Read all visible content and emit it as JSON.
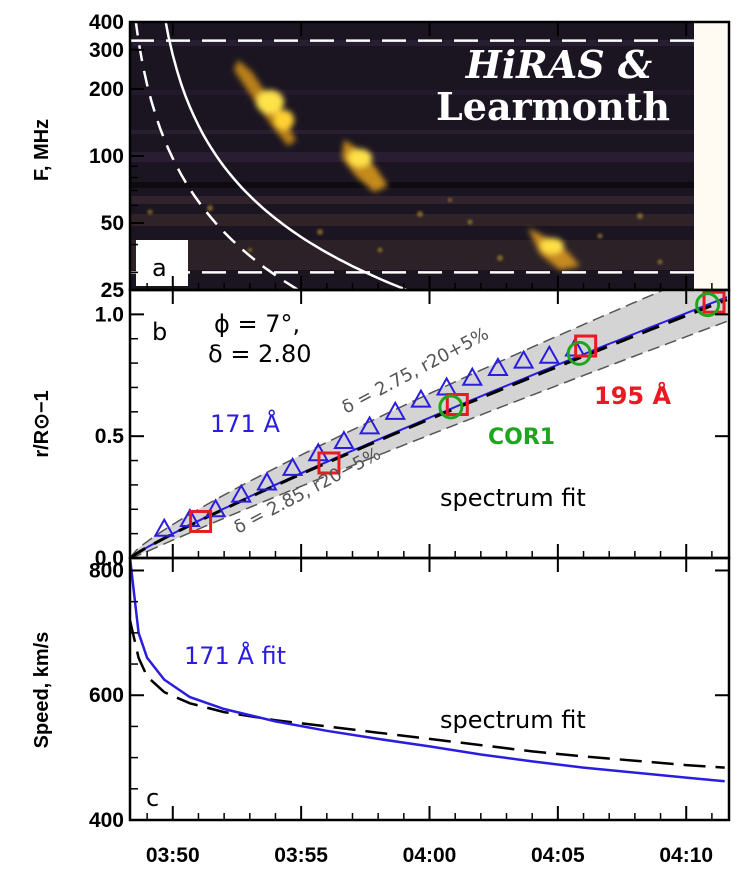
{
  "chart_data": [
    {
      "panel": "a",
      "type": "heatmap",
      "title": "HiRAS & Learmonth",
      "title_line1": "HiRAS &",
      "title_line2": "Learmonth",
      "ylabel": "F, MHz",
      "yscale": "log",
      "ylim": [
        25,
        400
      ],
      "yticks": [
        25,
        50,
        100,
        200,
        300,
        400
      ],
      "ytick_labels": [
        "25",
        "50",
        "100",
        "200",
        "300",
        "400"
      ],
      "panel_label": "a",
      "frequency_limits_dashed": [
        330,
        30
      ],
      "bands": [
        {
          "description": "bright drifting emission lane",
          "t_start": "03:51",
          "t_end": "03:54",
          "f_start": 300,
          "f_end": 150
        },
        {
          "description": "emission patch",
          "t_start": "03:56",
          "t_end": "03:58",
          "f_start": 110,
          "f_end": 80
        },
        {
          "description": "emission patch",
          "t_start": "04:02",
          "t_end": "04:05",
          "f_start": 45,
          "f_end": 30
        }
      ]
    },
    {
      "panel": "b",
      "type": "scatter",
      "ylabel": "r/R⊙−1",
      "ylim": [
        0.0,
        1.1
      ],
      "yticks": [
        0.0,
        0.5,
        1.0
      ],
      "ytick_labels": [
        "0.0",
        "0.5",
        "1.0"
      ],
      "panel_label": "b",
      "params": {
        "phi": "ϕ = 7°,",
        "delta": "δ = 2.80"
      },
      "annotations": {
        "upper_band": "δ = 2.75, r20+5%",
        "lower_band": "δ = 2.85, r20−5%",
        "series_171": "171 Å",
        "series_195": "195 Å",
        "series_cor1": "COR1",
        "spectrum_fit": "spectrum fit"
      },
      "series": [
        {
          "name": "171 Å",
          "marker": "triangle",
          "color": "#2b1de0",
          "x": [
            "03:49:40",
            "03:50:40",
            "03:51:40",
            "03:52:40",
            "03:53:40",
            "03:54:40",
            "03:55:40",
            "03:56:40",
            "03:57:40",
            "03:58:40",
            "03:59:40",
            "04:00:40",
            "04:01:40",
            "04:02:40",
            "04:03:40",
            "04:04:40",
            "04:05:40"
          ],
          "y": [
            0.12,
            0.16,
            0.2,
            0.26,
            0.31,
            0.37,
            0.43,
            0.48,
            0.54,
            0.6,
            0.65,
            0.7,
            0.74,
            0.78,
            0.81,
            0.83,
            0.86
          ]
        },
        {
          "name": "195 Å",
          "marker": "square",
          "color": "#e81b23",
          "x": [
            "03:51:05",
            "03:56:05",
            "04:01:05",
            "04:06:05",
            "04:11:05"
          ],
          "y": [
            0.15,
            0.39,
            0.63,
            0.87,
            1.05
          ]
        },
        {
          "name": "COR1",
          "marker": "circle",
          "color": "#1ea51e",
          "x": [
            "04:00:50",
            "04:05:50",
            "04:10:50"
          ],
          "y": [
            0.62,
            0.84,
            1.04
          ]
        }
      ]
    },
    {
      "panel": "c",
      "type": "line",
      "ylabel": "Speed, km/s",
      "ylim": [
        400,
        820
      ],
      "yticks": [
        400,
        600,
        800
      ],
      "ytick_labels": [
        "400",
        "600",
        "800"
      ],
      "panel_label": "c",
      "annotations": {
        "fit_171": "171 Å fit",
        "spectrum_fit": "spectrum fit"
      },
      "xlabels": [
        "03:50",
        "03:55",
        "04:00",
        "04:05",
        "04:10"
      ],
      "series": [
        {
          "name": "171 Å fit",
          "color": "#2b1de0",
          "x": [
            "03:48:20",
            "03:48:40",
            "03:49:00",
            "03:49:40",
            "03:50:40",
            "03:52:00",
            "03:54:00",
            "03:56:00",
            "03:58:00",
            "04:00:00",
            "04:02:00",
            "04:04:00",
            "04:06:00",
            "04:08:00",
            "04:10:00",
            "04:11:30"
          ],
          "y": [
            820,
            700,
            660,
            625,
            597,
            578,
            558,
            543,
            530,
            518,
            505,
            494,
            484,
            476,
            468,
            462
          ]
        },
        {
          "name": "spectrum fit",
          "color": "#000000",
          "x": [
            "03:48:20",
            "03:48:40",
            "03:49:00",
            "03:49:40",
            "03:50:40",
            "03:52:00",
            "03:54:00",
            "03:56:00",
            "03:58:00",
            "04:00:00",
            "04:02:00",
            "04:04:00",
            "04:06:00",
            "04:08:00",
            "04:10:00",
            "04:11:30"
          ],
          "y": [
            720,
            660,
            630,
            605,
            587,
            573,
            560,
            550,
            540,
            530,
            520,
            510,
            502,
            495,
            488,
            484
          ]
        }
      ]
    }
  ]
}
